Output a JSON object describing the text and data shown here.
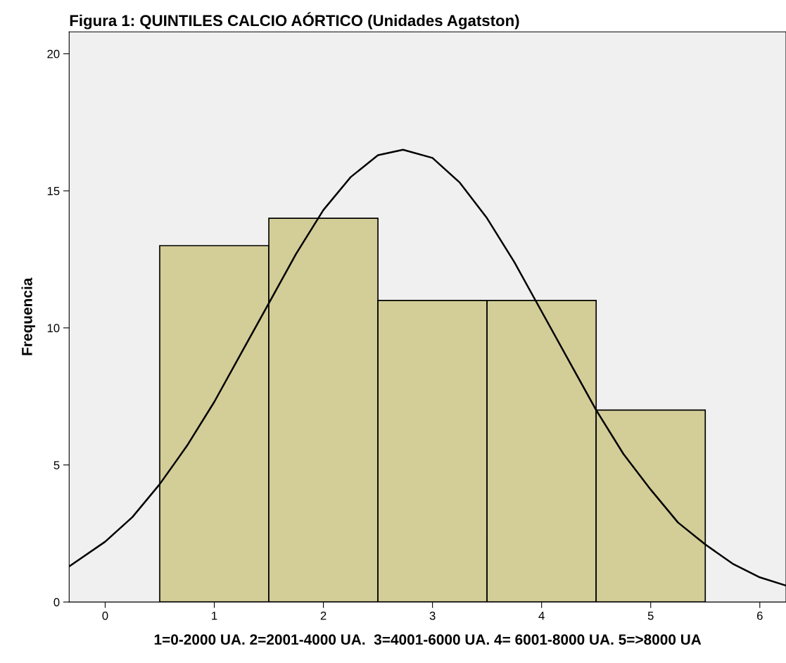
{
  "chart_data": {
    "type": "histogram",
    "title": "Figura 1: QUINTILES CALCIO AÓRTICO (Unidades Agatston)",
    "xlabel": "1=0-2000 UA. 2=2001-4000 UA.  3=4001-6000 UA. 4= 6001-8000 UA. 5=>8000 UA",
    "ylabel": "Frequencia",
    "bins": [
      0.5,
      1.5,
      2.5,
      3.5,
      4.5,
      5.5
    ],
    "values": [
      13,
      14,
      11,
      11,
      7
    ],
    "color": "#d3cd97",
    "series": [
      {
        "type": "line",
        "color": "#000000",
        "x": [
          -0.33,
          0,
          0.25,
          0.5,
          0.75,
          1,
          1.25,
          1.5,
          1.75,
          2,
          2.25,
          2.5,
          2.73,
          3,
          3.25,
          3.5,
          3.75,
          4,
          4.25,
          4.5,
          4.75,
          5,
          5.25,
          5.5,
          5.75,
          6,
          6.24
        ],
        "values": [
          1.3,
          2.2,
          3.1,
          4.3,
          5.7,
          7.3,
          9.1,
          10.9,
          12.7,
          14.3,
          15.5,
          16.3,
          16.5,
          16.2,
          15.3,
          14.0,
          12.4,
          10.6,
          8.8,
          7.0,
          5.4,
          4.1,
          2.9,
          2.1,
          1.4,
          0.9,
          0.6
        ]
      }
    ],
    "xlim": [
      -0.33,
      6.24
    ],
    "ylim": [
      0,
      20.8
    ],
    "xticks": [
      0,
      1,
      2,
      3,
      4,
      5,
      6
    ],
    "yticks": [
      0,
      5,
      10,
      15,
      20
    ],
    "grid": false,
    "legend": false
  }
}
